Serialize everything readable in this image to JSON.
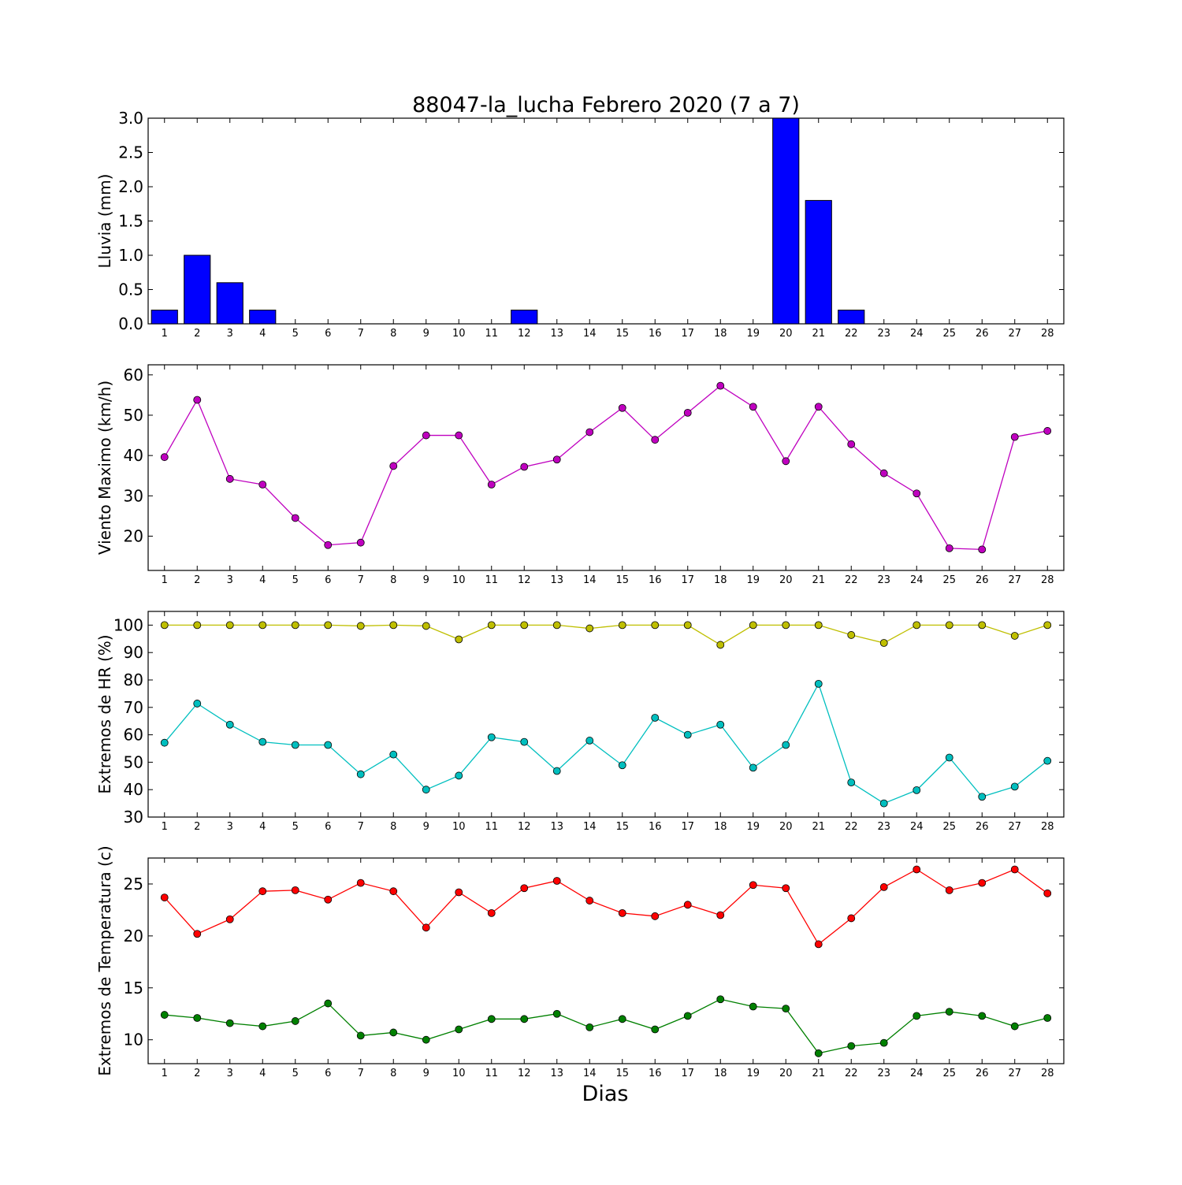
{
  "title": "88047-la_lucha Febrero 2020  (7 a 7)",
  "xlabel": "Dias",
  "days": [
    1,
    2,
    3,
    4,
    5,
    6,
    7,
    8,
    9,
    10,
    11,
    12,
    13,
    14,
    15,
    16,
    17,
    18,
    19,
    20,
    21,
    22,
    23,
    24,
    25,
    26,
    27,
    28
  ],
  "chart_data": [
    {
      "type": "bar",
      "ylabel": "Lluvia (mm)",
      "ylim": [
        0,
        3.0
      ],
      "yticks": [
        0.0,
        0.5,
        1.0,
        1.5,
        2.0,
        2.5,
        3.0
      ],
      "ytick_labels": [
        "0.0",
        "0.5",
        "1.0",
        "1.5",
        "2.0",
        "2.5",
        "3.0"
      ],
      "x": [
        1,
        2,
        3,
        4,
        5,
        6,
        7,
        8,
        9,
        10,
        11,
        12,
        13,
        14,
        15,
        16,
        17,
        18,
        19,
        20,
        21,
        22,
        23,
        24,
        25,
        26,
        27,
        28
      ],
      "series": [
        {
          "color": "#0000ff",
          "values": [
            0.2,
            1.0,
            0.6,
            0.2,
            0,
            0,
            0,
            0,
            0,
            0,
            0,
            0.2,
            0,
            0,
            0,
            0,
            0,
            0,
            0,
            3.0,
            1.8,
            0.2,
            0,
            0,
            0,
            0,
            0,
            0
          ]
        }
      ]
    },
    {
      "type": "line",
      "ylabel": "Viento Maximo (km/h)",
      "ylim": [
        11.5,
        62.5
      ],
      "yticks": [
        20,
        30,
        40,
        50,
        60
      ],
      "ytick_labels": [
        "20",
        "30",
        "40",
        "50",
        "60"
      ],
      "x": [
        1,
        2,
        3,
        4,
        5,
        6,
        7,
        8,
        9,
        10,
        11,
        12,
        13,
        14,
        15,
        16,
        17,
        18,
        19,
        20,
        21,
        22,
        23,
        24,
        25,
        26,
        27,
        28
      ],
      "series": [
        {
          "color": "#bf00bf",
          "values": [
            39.6,
            53.8,
            34.2,
            32.8,
            24.5,
            17.8,
            18.4,
            37.4,
            45,
            45,
            32.8,
            37.2,
            39,
            45.8,
            51.8,
            43.9,
            50.6,
            57.3,
            52.1,
            38.6,
            52.1,
            42.8,
            35.6,
            30.6,
            17,
            16.7,
            44.6,
            46.1
          ]
        }
      ]
    },
    {
      "type": "line",
      "ylabel": "Extremos de HR (%)",
      "ylim": [
        30,
        105
      ],
      "yticks": [
        30,
        40,
        50,
        60,
        70,
        80,
        90,
        100
      ],
      "ytick_labels": [
        "30",
        "40",
        "50",
        "60",
        "70",
        "80",
        "90",
        "100"
      ],
      "x": [
        1,
        2,
        3,
        4,
        5,
        6,
        7,
        8,
        9,
        10,
        11,
        12,
        13,
        14,
        15,
        16,
        17,
        18,
        19,
        20,
        21,
        22,
        23,
        24,
        25,
        26,
        27,
        28
      ],
      "series": [
        {
          "color": "#bfbf00",
          "values": [
            100,
            100,
            100,
            100,
            100,
            100,
            99.7,
            100,
            99.7,
            94.8,
            100,
            100,
            100,
            98.8,
            100,
            100,
            100,
            92.8,
            100,
            100,
            100,
            96.4,
            93.5,
            100,
            100,
            100,
            96.1,
            100
          ]
        },
        {
          "color": "#00bfbf",
          "values": [
            57.1,
            71.4,
            63.7,
            57.4,
            56.3,
            56.3,
            45.6,
            52.8,
            40,
            45.1,
            59.1,
            57.4,
            46.8,
            57.9,
            48.9,
            66.2,
            60,
            63.7,
            48,
            56.3,
            78.6,
            42.6,
            35,
            39.8,
            51.7,
            37.4,
            41.1,
            50.5
          ]
        }
      ]
    },
    {
      "type": "line",
      "ylabel": "Extremos de Temperatura (c)",
      "ylim": [
        7.7,
        27.5
      ],
      "yticks": [
        10,
        15,
        20,
        25
      ],
      "ytick_labels": [
        "10",
        "15",
        "20",
        "25"
      ],
      "x": [
        1,
        2,
        3,
        4,
        5,
        6,
        7,
        8,
        9,
        10,
        11,
        12,
        13,
        14,
        15,
        16,
        17,
        18,
        19,
        20,
        21,
        22,
        23,
        24,
        25,
        26,
        27,
        28
      ],
      "series": [
        {
          "color": "#ff0000",
          "values": [
            23.7,
            20.2,
            21.6,
            24.3,
            24.4,
            23.5,
            25.1,
            24.3,
            20.8,
            24.2,
            22.2,
            24.6,
            25.3,
            23.4,
            22.2,
            21.9,
            23,
            22,
            24.9,
            24.6,
            19.2,
            21.7,
            24.7,
            26.4,
            24.4,
            25.1,
            26.4,
            24.1
          ]
        },
        {
          "color": "#008000",
          "values": [
            12.4,
            12.1,
            11.6,
            11.3,
            11.8,
            13.5,
            10.4,
            10.7,
            10,
            11,
            12,
            12,
            12.5,
            11.2,
            12,
            11,
            12.3,
            13.9,
            13.2,
            13,
            8.7,
            9.4,
            9.7,
            12.3,
            12.7,
            12.3,
            11.3,
            12.1
          ]
        }
      ]
    }
  ]
}
